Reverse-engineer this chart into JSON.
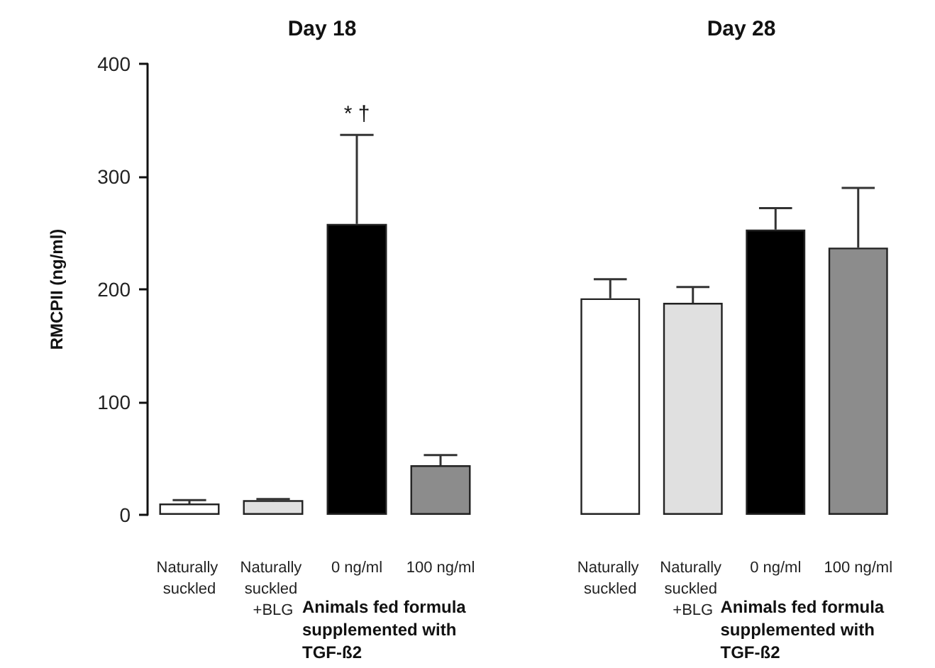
{
  "chart_data": [
    {
      "type": "bar",
      "title": "Day 18",
      "ylabel": "RMCPII (ng/ml)",
      "categories": [
        "Naturally suckled",
        "Naturally suckled +BLG",
        "0 ng/ml",
        "100 ng/ml"
      ],
      "values": [
        10,
        13,
        258,
        44
      ],
      "colors": [
        "#ffffff",
        "#e0e0e0",
        "#000000",
        "#8c8c8c"
      ],
      "errors": [
        [
          10,
          13
        ],
        [
          13,
          14
        ],
        [
          258,
          337
        ],
        [
          44,
          53
        ]
      ],
      "ylim": [
        0,
        400
      ],
      "yticks": [
        0,
        100,
        200,
        300,
        400
      ],
      "annotations": [
        "* †",
        "Animals fed formula supplemented with TGF-ß2"
      ]
    },
    {
      "type": "bar",
      "title": "Day 28",
      "categories": [
        "Naturally suckled",
        "Naturally suckled +BLG",
        "0 ng/ml",
        "100 ng/ml"
      ],
      "values": [
        192,
        188,
        253,
        237
      ],
      "colors": [
        "#ffffff",
        "#e0e0e0",
        "#000000",
        "#8c8c8c"
      ],
      "errors": [
        [
          192,
          209
        ],
        [
          188,
          202
        ],
        [
          253,
          272
        ],
        [
          237,
          290
        ]
      ],
      "ylim": [
        0,
        400
      ],
      "yticks": [
        0,
        100,
        200,
        300,
        400
      ],
      "tick_labels": "x",
      "annotations": [
        "Animals fed formula supplemented with TGF-ß2"
      ]
    }
  ]
}
